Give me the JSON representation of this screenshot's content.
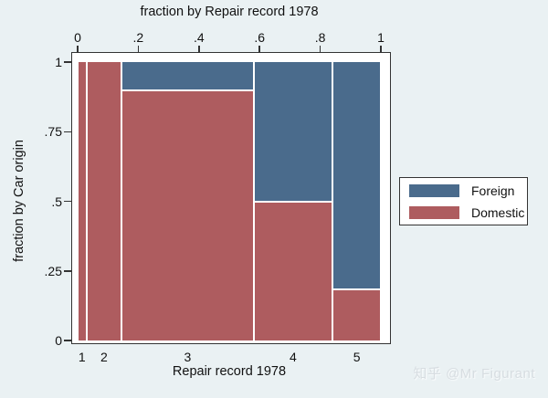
{
  "colors": {
    "background": "#EAF1F3",
    "plot_background": "#FFFFFF",
    "frame": "#333333",
    "foreign": "#4A6B8C",
    "domestic": "#AE5C5F",
    "text": "#111111",
    "watermark": "#D7DDE1"
  },
  "watermark": {
    "text": "知乎 @Mr Figurant"
  },
  "chart_data": {
    "type": "bar",
    "variant": "spineplot-mosaic",
    "title_top_axis": "fraction by Repair record 1978",
    "xlabel_bottom": "Repair record 1978",
    "ylabel_left": "fraction by Car origin",
    "categories": [
      "1",
      "2",
      "3",
      "4",
      "5"
    ],
    "category_width_fractions": [
      0.029,
      0.116,
      0.435,
      0.261,
      0.159
    ],
    "series": [
      {
        "name": "Foreign",
        "color": "#4A6B8C",
        "fractions": [
          0,
          0,
          0.1,
          0.5,
          0.818
        ]
      },
      {
        "name": "Domestic",
        "color": "#AE5C5F",
        "fractions": [
          1,
          1,
          0.9,
          0.5,
          0.182
        ]
      }
    ],
    "x_axis": {
      "range": [
        0,
        1
      ],
      "ticks": [
        0,
        0.2,
        0.4,
        0.6,
        0.8,
        1
      ],
      "tick_labels": [
        "0",
        ".2",
        ".4",
        ".6",
        ".8",
        "1"
      ],
      "position": "top"
    },
    "y_axis": {
      "range": [
        0,
        1
      ],
      "ticks": [
        0,
        0.25,
        0.5,
        0.75,
        1
      ],
      "tick_labels": [
        "0",
        ".25",
        ".5",
        ".75",
        "1"
      ],
      "position": "left"
    },
    "legend": {
      "position": "right",
      "entries": [
        {
          "label": "Foreign",
          "color": "#4A6B8C"
        },
        {
          "label": "Domestic",
          "color": "#AE5C5F"
        }
      ]
    },
    "grid": false
  }
}
